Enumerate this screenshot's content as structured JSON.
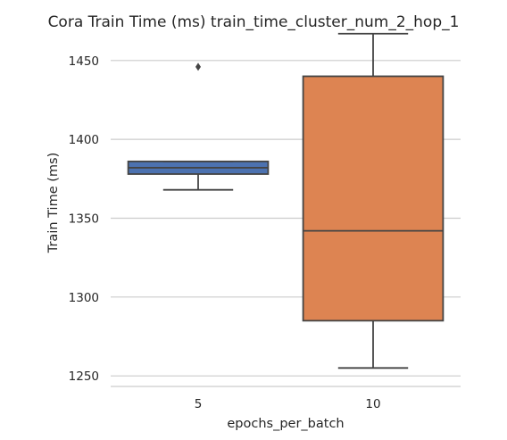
{
  "chart_data": {
    "type": "box",
    "title": "Cora Train Time (ms) train_time_cluster_num_2_hop_1",
    "xlabel": "epochs_per_batch",
    "ylabel": "Train Time (ms)",
    "ylim": [
      1245,
      1468
    ],
    "yticks": [
      1250,
      1300,
      1350,
      1400,
      1450
    ],
    "grid": "horizontal",
    "categories": [
      "5",
      "10"
    ],
    "boxes": [
      {
        "category": "5",
        "color": "#4c72b0",
        "q1": 1378,
        "median": 1382,
        "q3": 1386,
        "whisker_low": 1368,
        "whisker_high": 1386,
        "outliers": [
          1446
        ]
      },
      {
        "category": "10",
        "color": "#dd8452",
        "q1": 1285,
        "median": 1342,
        "q3": 1440,
        "whisker_low": 1255,
        "whisker_high": 1467,
        "outliers": []
      }
    ]
  },
  "colors": {
    "grid": "#cccccc",
    "line": "#444444",
    "text": "#262626"
  }
}
